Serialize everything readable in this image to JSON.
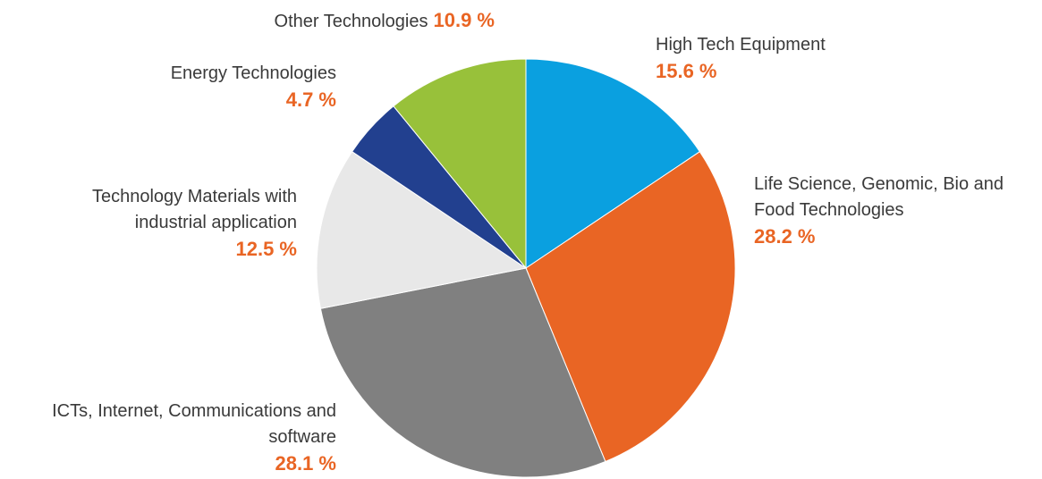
{
  "chart_data": {
    "type": "pie",
    "categories": [
      "High Tech Equipment",
      "Life Science, Genomic, Bio and Food Technologies",
      "ICTs, Internet, Communications and software",
      "Technology Materials with industrial application",
      "Energy Technologies",
      "Other Technologies"
    ],
    "values": [
      15.6,
      28.2,
      28.1,
      12.5,
      4.7,
      10.9
    ],
    "value_labels": [
      "15.6 %",
      "28.2 %",
      "28.1 %",
      "12.5 %",
      "4.7 %",
      "10.9 %"
    ],
    "colors": [
      "#0aa0e0",
      "#e96524",
      "#808080",
      "#e8e8e8",
      "#22408f",
      "#98c13a"
    ]
  }
}
